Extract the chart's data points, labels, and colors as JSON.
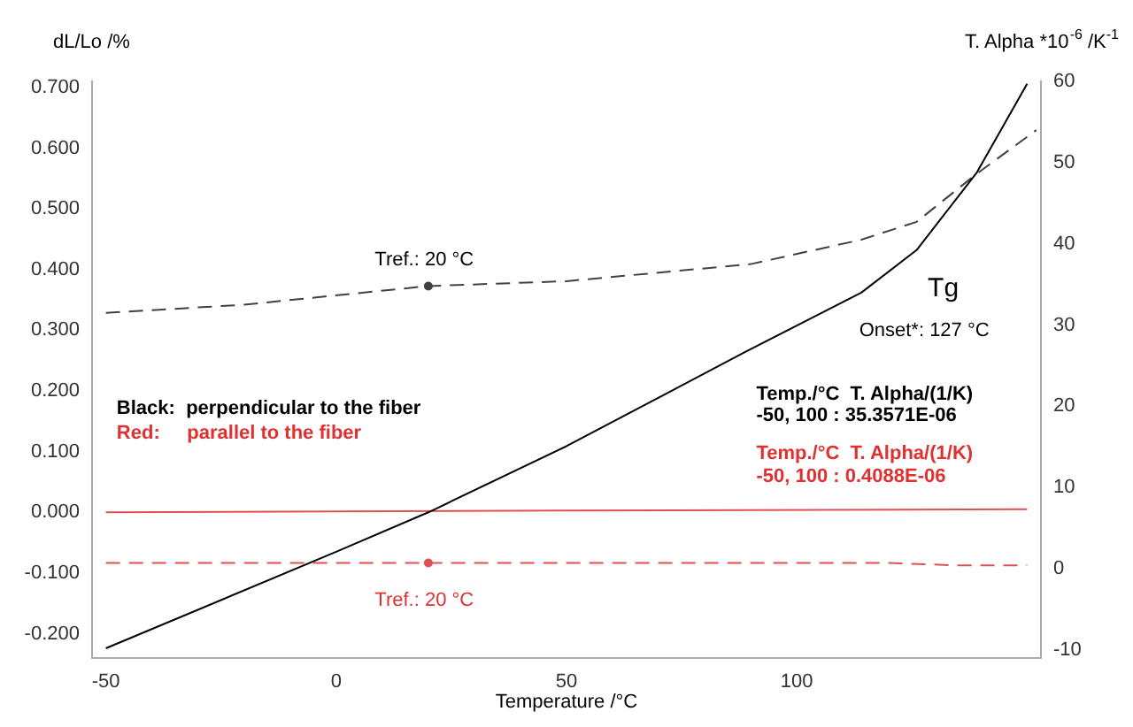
{
  "chart_data": {
    "type": "line",
    "xlabel": "Temperature /°C",
    "ylabel": "dL/Lo /%",
    "y2label": "T. Alpha *10$^{-6}$ /K$^{-1}$",
    "xlim": [
      -53,
      153
    ],
    "xticks": [
      -50,
      0,
      50,
      100
    ],
    "ylim": [
      -0.24,
      0.71
    ],
    "yticks": [
      {
        "value": -0.2,
        "label": "-0.200"
      },
      {
        "value": -0.1,
        "label": "-0.100"
      },
      {
        "value": 0,
        "label": "0.000"
      },
      {
        "value": 0.1,
        "label": "0.100"
      },
      {
        "value": 0.2,
        "label": "0.200"
      },
      {
        "value": 0.3,
        "label": "0.300"
      },
      {
        "value": 0.4,
        "label": "0.400"
      },
      {
        "value": 0.5,
        "label": "0.500"
      },
      {
        "value": 0.6,
        "label": "0.600"
      },
      {
        "value": 0.7,
        "label": "0.700"
      }
    ],
    "y2lim": [
      -11,
      60
    ],
    "y2ticks": [
      -10,
      0,
      10,
      20,
      30,
      40,
      50,
      60
    ],
    "grid": false,
    "legend": false,
    "marker": "none",
    "series": [
      {
        "type": "line",
        "color": "#000000",
        "line_style": "solid",
        "x": [
          -50,
          0,
          20,
          50,
          89,
          114,
          126,
          139,
          150
        ],
        "values": [
          -0.224,
          -0.065,
          0,
          0.109,
          0.265,
          0.362,
          0.432,
          0.559,
          0.706
        ]
      },
      {
        "type": "line",
        "color": "#404040",
        "line_style": "dashed",
        "axis": "y2",
        "x": [
          -50,
          -20,
          20,
          50,
          90,
          114,
          126,
          139,
          152
        ],
        "values": [
          31.5,
          32.5,
          34.8,
          35.4,
          37.5,
          40.5,
          42.7,
          48.6,
          54
        ]
      },
      {
        "type": "line",
        "color": "#e05050",
        "line_style": "solid",
        "x": [
          -50,
          50,
          150
        ],
        "values": [
          0,
          0.003,
          0.005
        ]
      },
      {
        "type": "line",
        "color": "#e05050",
        "line_style": "dashed",
        "axis": "y2",
        "x": [
          -50,
          20,
          120,
          135,
          150
        ],
        "values": [
          0.7,
          0.7,
          0.7,
          0.4,
          0.4
        ]
      },
      {
        "type": "scatter",
        "color": "#404040",
        "axis": "y2",
        "marker": "circle",
        "x": [
          20
        ],
        "values": [
          34.8
        ]
      },
      {
        "type": "scatter",
        "color": "#e05050",
        "axis": "y2",
        "marker": "circle",
        "x": [
          20
        ],
        "values": [
          0.7
        ]
      }
    ],
    "annotations": [
      "Tref.: 20 °C",
      "Tref.: 20 °C",
      "Tg",
      "Onset*: 127 °C",
      "Black:  perpendicular to the fiber",
      "Red:     parallel to the fiber",
      "Temp./°C  T. Alpha/(1/K)",
      "-50, 100 : 35.3571E-06",
      "Temp./°C  T. Alpha/(1/K)",
      "-50, 100 : 0.4088E-06"
    ]
  }
}
